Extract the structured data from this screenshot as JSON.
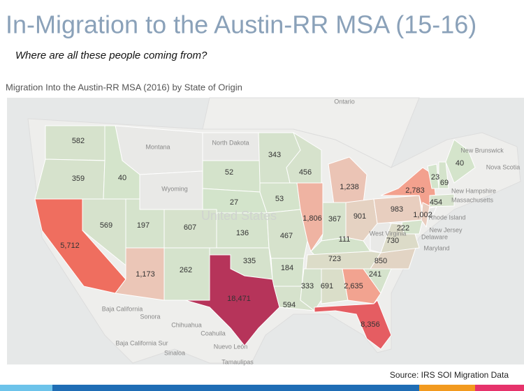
{
  "header": {
    "title": "In-Migration to the Austin-RR MSA (15-16)",
    "subtitle": "Where are all these people coming from?"
  },
  "map": {
    "title": "Migration Into the Austin-RR MSA (2016) by State of Origin",
    "states": [
      {
        "value": 582
      },
      {
        "value": 359
      },
      {
        "value": 5712,
        "label": "5,712"
      },
      {
        "value": 569
      },
      {
        "value": 40
      },
      {
        "value": 197
      },
      {
        "value": 1173,
        "label": "1,173"
      },
      {
        "value": 607
      },
      {
        "value": 262
      },
      {
        "value": 52
      },
      {
        "value": 27
      },
      {
        "value": 136
      },
      {
        "value": 335
      },
      {
        "value": 18471,
        "label": "18,471"
      },
      {
        "value": 343
      },
      {
        "value": 53
      },
      {
        "value": 467
      },
      {
        "value": 184
      },
      {
        "value": 594
      },
      {
        "value": 456
      },
      {
        "value": 1806,
        "label": "1,806"
      },
      {
        "value": 1238,
        "label": "1,238"
      },
      {
        "value": 367
      },
      {
        "value": 901
      },
      {
        "value": 111
      },
      {
        "value": 723
      },
      {
        "value": 333
      },
      {
        "value": 691
      },
      {
        "value": 2635,
        "label": "2,635"
      },
      {
        "value": 8356,
        "label": "8,356"
      },
      {
        "value": 241
      },
      {
        "value": 850
      },
      {
        "value": 730
      },
      {
        "value": 983
      },
      {
        "value": 2783,
        "label": "2,783"
      },
      {
        "value": 222
      },
      {
        "value": 1002,
        "label": "1,002"
      },
      {
        "value": 23
      },
      {
        "value": 69
      },
      {
        "value": 40
      },
      {
        "value": 454
      }
    ],
    "place_labels": [
      "Ontario",
      "North Dakota",
      "Montana",
      "Wyoming",
      "United States",
      "New Brunswick",
      "Nova Scotia",
      "New Hampshire",
      "Massachusetts",
      "Rhode Island",
      "New Jersey",
      "Delaware",
      "Maryland",
      "West Virginia",
      "Baja California",
      "Sonora",
      "Chihuahua",
      "Coahuila",
      "Nuevo León",
      "Baja California Sur",
      "Sinaloa",
      "Tamaulipas"
    ]
  },
  "footer": {
    "source": "Source: IRS SOI Migration Data"
  }
}
